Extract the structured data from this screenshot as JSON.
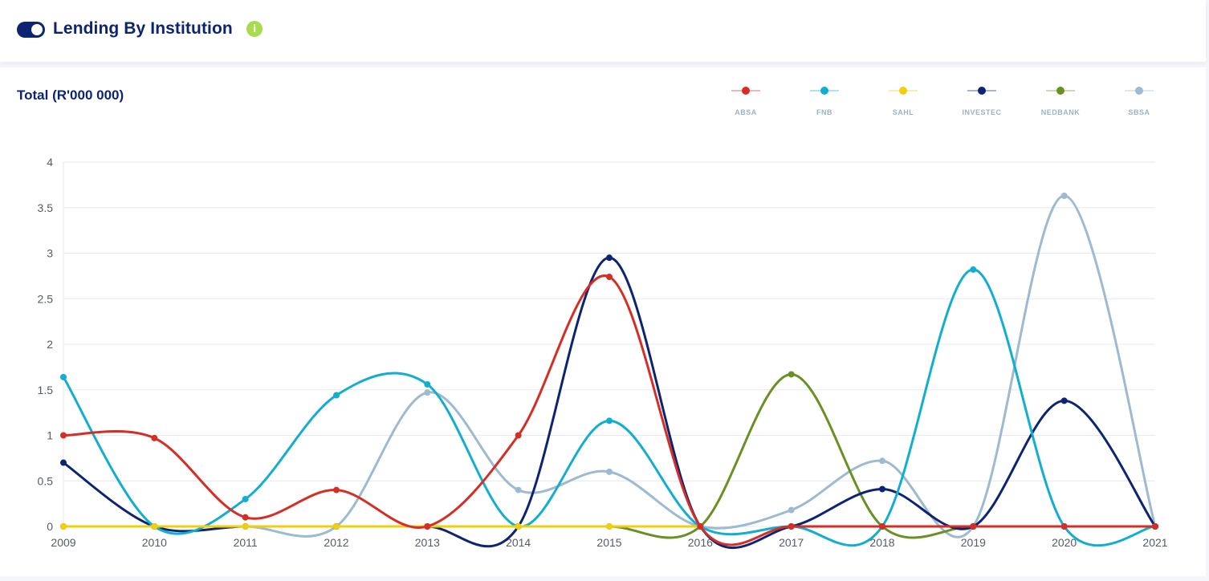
{
  "header": {
    "title": "Lending By Institution",
    "info_icon": "i"
  },
  "chart_data": {
    "type": "line",
    "title": "Total (R'000 000)",
    "xlabel": "",
    "ylabel": "",
    "categories": [
      "2009",
      "2010",
      "2011",
      "2012",
      "2013",
      "2014",
      "2015",
      "2016",
      "2017",
      "2018",
      "2019",
      "2020",
      "2021"
    ],
    "ylim": [
      0,
      4
    ],
    "yticks": [
      "0",
      "0.5",
      "1",
      "1.5",
      "2",
      "2.5",
      "3",
      "3.5",
      "4"
    ],
    "grid": true,
    "legend_position": "top-right",
    "curve": "smooth",
    "series": [
      {
        "name": "ABSA",
        "color": "#d42e26",
        "values": [
          1,
          0.97,
          0.1,
          0.4,
          0,
          1,
          2.74,
          0,
          0,
          0,
          0,
          0,
          0
        ]
      },
      {
        "name": "FNB",
        "color": "#12aecf",
        "values": [
          1.64,
          0,
          0.3,
          1.44,
          1.56,
          0,
          1.16,
          0,
          0,
          0,
          2.82,
          0,
          0
        ]
      },
      {
        "name": "SAHL",
        "color": "#f2cf0d",
        "values": [
          0,
          0,
          0,
          0,
          0,
          0,
          0,
          0,
          null,
          null,
          null,
          null,
          null
        ]
      },
      {
        "name": "INVESTEC",
        "color": "#0c2472",
        "values": [
          0.7,
          0,
          0,
          0,
          0,
          0,
          2.95,
          0,
          0,
          0.41,
          0,
          1.38,
          0
        ]
      },
      {
        "name": "NEDBANK",
        "color": "#6a8f23",
        "values": [
          0,
          0,
          0,
          0,
          0,
          0,
          0,
          0,
          1.67,
          0,
          0,
          0,
          0
        ]
      },
      {
        "name": "SBSA",
        "color": "#9dbad0",
        "values": [
          0,
          0,
          0,
          0,
          1.47,
          0.4,
          0.6,
          0,
          0.18,
          0.72,
          0,
          3.63,
          0
        ]
      }
    ]
  }
}
